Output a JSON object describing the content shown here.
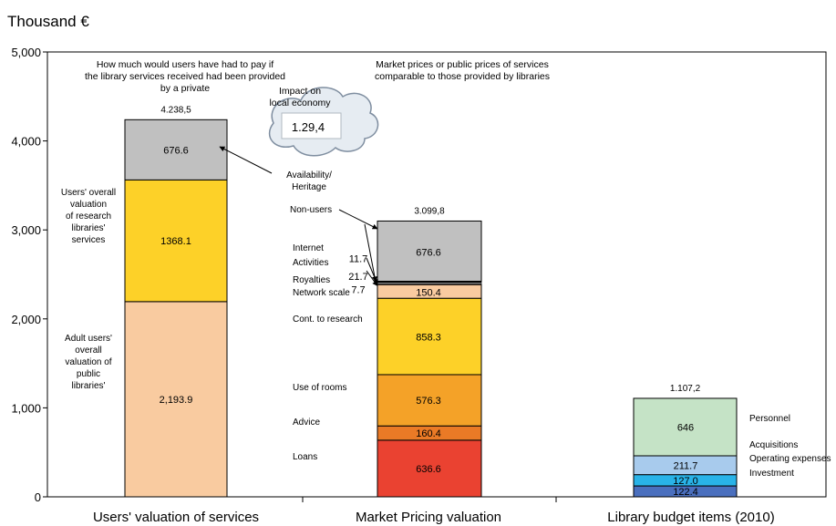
{
  "chart_data": {
    "type": "bar",
    "stacked": true,
    "unit_label": "Thousand €",
    "ylim": [
      0,
      5000
    ],
    "y_ticks": [
      0,
      1000,
      2000,
      3000,
      4000,
      5000
    ],
    "y_tick_labels": [
      "0",
      "1,000",
      "2,000",
      "3,000",
      "4,000",
      "5,000"
    ],
    "grid": false,
    "categories": [
      "Users' valuation of services",
      "Market Pricing valuation",
      "Library budget items (2010)"
    ],
    "column_notes": [
      "How much would users have had to pay if the library services received had been provided by a private company?",
      "Market prices or public prices of services comparable to those provided by libraries"
    ],
    "cloud_title": "Impact on local economy",
    "cloud_value": "1.29,4",
    "bars": [
      {
        "category": "Users' valuation of services",
        "total": 4238.5,
        "total_label": "4.238,5",
        "segments": [
          {
            "value": 2193.9,
            "label": "2,193.9",
            "color": "#f9cba0",
            "name": "Adult users' overall valuation of public libraries' services"
          },
          {
            "value": 1368.1,
            "label": "1368.1",
            "color": "#fdd128",
            "name": "Users' overall valuation of research libraries' services"
          },
          {
            "value": 676.6,
            "label": "676.6",
            "color": "#c0c0c0",
            "name": ""
          }
        ]
      },
      {
        "category": "Market Pricing valuation",
        "total": 3099.8,
        "total_label": "3.099,8",
        "segments": [
          {
            "value": 636.6,
            "label": "636.6",
            "color": "#ea4231",
            "name": "Loans"
          },
          {
            "value": 160.4,
            "label": "160.4",
            "color": "#ea7a26",
            "name": "Advice"
          },
          {
            "value": 576.3,
            "label": "576.3",
            "color": "#f4a228",
            "name": "Use of rooms"
          },
          {
            "value": 858.3,
            "label": "858.3",
            "color": "#fdd128",
            "name": "Cont. to research"
          },
          {
            "value": 150.4,
            "label": "150.4",
            "color": "#f9cba0",
            "name": "Network scale"
          },
          {
            "value": 7.7,
            "label": "7.7",
            "color": "#f4b183",
            "name": "Royalties"
          },
          {
            "value": 21.7,
            "label": "21.7",
            "color": "#7f7f7f",
            "name": "Activities"
          },
          {
            "value": 11.7,
            "label": "11.7",
            "color": "#000000",
            "name": "Internet"
          },
          {
            "value": 676.6,
            "label": "676.6",
            "color": "#c0c0c0",
            "name": "Non-users"
          }
        ]
      },
      {
        "category": "Library budget items (2010)",
        "total": 1107.2,
        "total_label": "1.107,2",
        "segments": [
          {
            "value": 122.4,
            "label": "122.4",
            "color": "#4a6fbe",
            "name": "Investment"
          },
          {
            "value": 127.0,
            "label": "127.0",
            "color": "#29b3e8",
            "name": "Operating expenses"
          },
          {
            "value": 211.7,
            "label": "211.7",
            "color": "#a8cbed",
            "name": "Acquisitions"
          },
          {
            "value": 646,
            "label": "646",
            "color": "#c5e3c6",
            "name": "Personnel"
          }
        ]
      }
    ],
    "annotations": [
      "Availability/ Heritage"
    ]
  }
}
